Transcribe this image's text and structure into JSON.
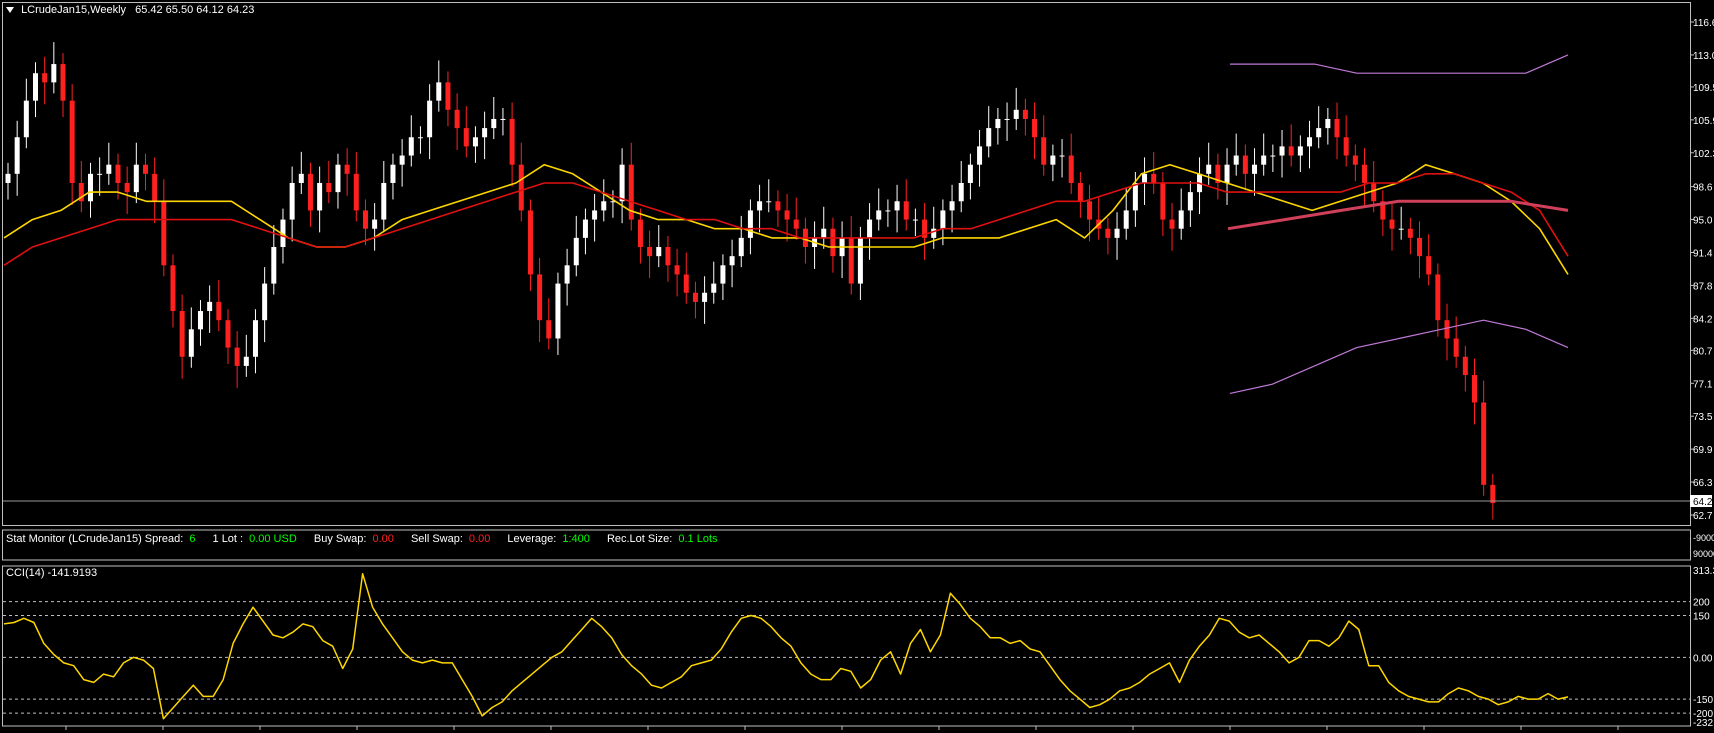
{
  "header": {
    "symbol": "LCrudeJan15,Weekly",
    "ohlc": "65.42 65.50 64.12 64.23"
  },
  "price_axis": {
    "labels": [
      "116.6",
      "113.0",
      "109.5",
      "105.9",
      "102.3",
      "98.6",
      "95.0",
      "91.4",
      "87.8",
      "84.2",
      "80.7",
      "77.1",
      "73.5",
      "69.9",
      "66.3",
      "62.7"
    ],
    "current": "64.23"
  },
  "stat_monitor": {
    "name": "Stat Monitor (LCrudeJan15)",
    "spread_label": "Spread:",
    "spread": "6",
    "lot_label": "1 Lot :",
    "lot": "0.00 USD",
    "buy_swap_label": "Buy Swap:",
    "buy_swap": "0.00",
    "sell_swap_label": "Sell Swap:",
    "sell_swap": "0.00",
    "leverage_label": "Leverage:",
    "leverage": "1:400",
    "reclot_label": "Rec.Lot Size:",
    "reclot": "0.1 Lots",
    "axis_top": "-9000",
    "axis_bottom": "90000"
  },
  "cci_panel": {
    "label": "CCI(14) -141.9193",
    "axis_labels": [
      "313.3",
      "200",
      "150",
      "0.00",
      "-150",
      "-200",
      "-232"
    ]
  },
  "colors": {
    "background": "#000000",
    "bull": "#ffffff",
    "bear": "#ff2020",
    "ema_fast": "#ffd700",
    "ema_slow": "#e01010",
    "band": "#c07ad8",
    "mid_band": "#d0405a",
    "cci": "#ffd700",
    "grid": "#bfbfbf"
  },
  "chart_data": [
    {
      "type": "candlestick",
      "title": "LCrudeJan15,Weekly",
      "ylim": [
        62.7,
        116.6
      ],
      "series": [
        {
          "name": "LCrudeJan15",
          "close": [
            100,
            104,
            108,
            111,
            110,
            112,
            108,
            99,
            97,
            100,
            100,
            101,
            99,
            98,
            101,
            100,
            97,
            90,
            85,
            80,
            83,
            85,
            86,
            84,
            81,
            79,
            80,
            84,
            88,
            92,
            95,
            99,
            100,
            96,
            99,
            98,
            101,
            100,
            96,
            94,
            95,
            99,
            101,
            102,
            104,
            104,
            108,
            110,
            107,
            105,
            103,
            104,
            105,
            106,
            106,
            101,
            96,
            89,
            84,
            82,
            88,
            90,
            93,
            95,
            96,
            97,
            97,
            101,
            95,
            92,
            91,
            92,
            90,
            89,
            87,
            86,
            87,
            88,
            90,
            91,
            93,
            96,
            97,
            97,
            96,
            95,
            94,
            92,
            93,
            94,
            91,
            93,
            88,
            93,
            95,
            96,
            96,
            97,
            95,
            95,
            93,
            94,
            96,
            97,
            99,
            101,
            103,
            105,
            106,
            106,
            107,
            106,
            104,
            101,
            102,
            102,
            99,
            97,
            95,
            94,
            93,
            94,
            96,
            99,
            100,
            99,
            95,
            94,
            96,
            98,
            100,
            101,
            99,
            101,
            102,
            100,
            101,
            102,
            102,
            103,
            102,
            103,
            104,
            105,
            106,
            104,
            102,
            101,
            99,
            97,
            95,
            94,
            94,
            93,
            91,
            89,
            84,
            82,
            80,
            78,
            75,
            66,
            64
          ]
        },
        {
          "name": "EMA fast",
          "values": [
            93,
            95,
            96,
            98,
            98,
            97,
            97,
            97,
            97,
            95,
            93,
            92,
            92,
            93,
            95,
            96,
            97,
            98,
            99,
            101,
            100,
            98,
            96,
            95,
            95,
            94,
            94,
            93,
            93,
            92,
            92,
            92,
            92,
            93,
            93,
            93,
            94,
            95,
            93,
            96,
            100,
            101,
            100,
            99,
            98,
            97,
            96,
            97,
            98,
            99,
            101,
            100,
            99,
            97,
            94,
            89
          ]
        },
        {
          "name": "EMA slow",
          "values": [
            90,
            92,
            93,
            94,
            95,
            95,
            95,
            95,
            95,
            94,
            93,
            92,
            92,
            93,
            94,
            95,
            96,
            97,
            98,
            99,
            99,
            98,
            97,
            96,
            95,
            95,
            94,
            94,
            93,
            93,
            93,
            93,
            93,
            94,
            94,
            95,
            96,
            97,
            97,
            98,
            99,
            99,
            99,
            98,
            98,
            98,
            98,
            98,
            99,
            99,
            100,
            100,
            99,
            98,
            96,
            91
          ]
        },
        {
          "name": "Upper band",
          "values": [
            112,
            112,
            112,
            111,
            111,
            111,
            111,
            111,
            113
          ]
        },
        {
          "name": "Mid band",
          "values": [
            94,
            95,
            96,
            97,
            97,
            97,
            96
          ]
        },
        {
          "name": "Lower band",
          "values": [
            76,
            77,
            79,
            81,
            82,
            83,
            84,
            83,
            81
          ]
        }
      ]
    },
    {
      "type": "line",
      "title": "CCI(14) -141.9193",
      "ylim": [
        -232,
        313.3
      ],
      "series": [
        {
          "name": "CCI(14)",
          "values": [
            120,
            125,
            140,
            125,
            50,
            10,
            -20,
            -30,
            -80,
            -90,
            -60,
            -70,
            -20,
            0,
            -10,
            -40,
            -220,
            -180,
            -140,
            -100,
            -140,
            -140,
            -80,
            50,
            120,
            180,
            130,
            80,
            70,
            90,
            120,
            110,
            60,
            40,
            -40,
            30,
            300,
            180,
            120,
            70,
            20,
            -10,
            -20,
            -10,
            -20,
            -20,
            -80,
            -140,
            -210,
            -180,
            -160,
            -120,
            -90,
            -60,
            -30,
            0,
            20,
            60,
            100,
            140,
            110,
            70,
            10,
            -30,
            -60,
            -100,
            -110,
            -90,
            -70,
            -30,
            -20,
            -10,
            30,
            90,
            140,
            150,
            140,
            110,
            70,
            40,
            -20,
            -60,
            -80,
            -80,
            -40,
            -50,
            -110,
            -80,
            -10,
            20,
            -60,
            50,
            100,
            20,
            80,
            230,
            190,
            140,
            110,
            70,
            70,
            50,
            60,
            30,
            20,
            -30,
            -80,
            -120,
            -150,
            -180,
            -170,
            -150,
            -120,
            -110,
            -90,
            -60,
            -40,
            -20,
            -90,
            -10,
            40,
            80,
            140,
            130,
            90,
            70,
            80,
            50,
            20,
            -20,
            0,
            60,
            60,
            40,
            70,
            130,
            100,
            -30,
            -30,
            -90,
            -120,
            -140,
            -150,
            -160,
            -160,
            -130,
            -110,
            -120,
            -140,
            -150,
            -170,
            -160,
            -140,
            -150,
            -150,
            -130,
            -150,
            -142
          ]
        }
      ]
    }
  ]
}
